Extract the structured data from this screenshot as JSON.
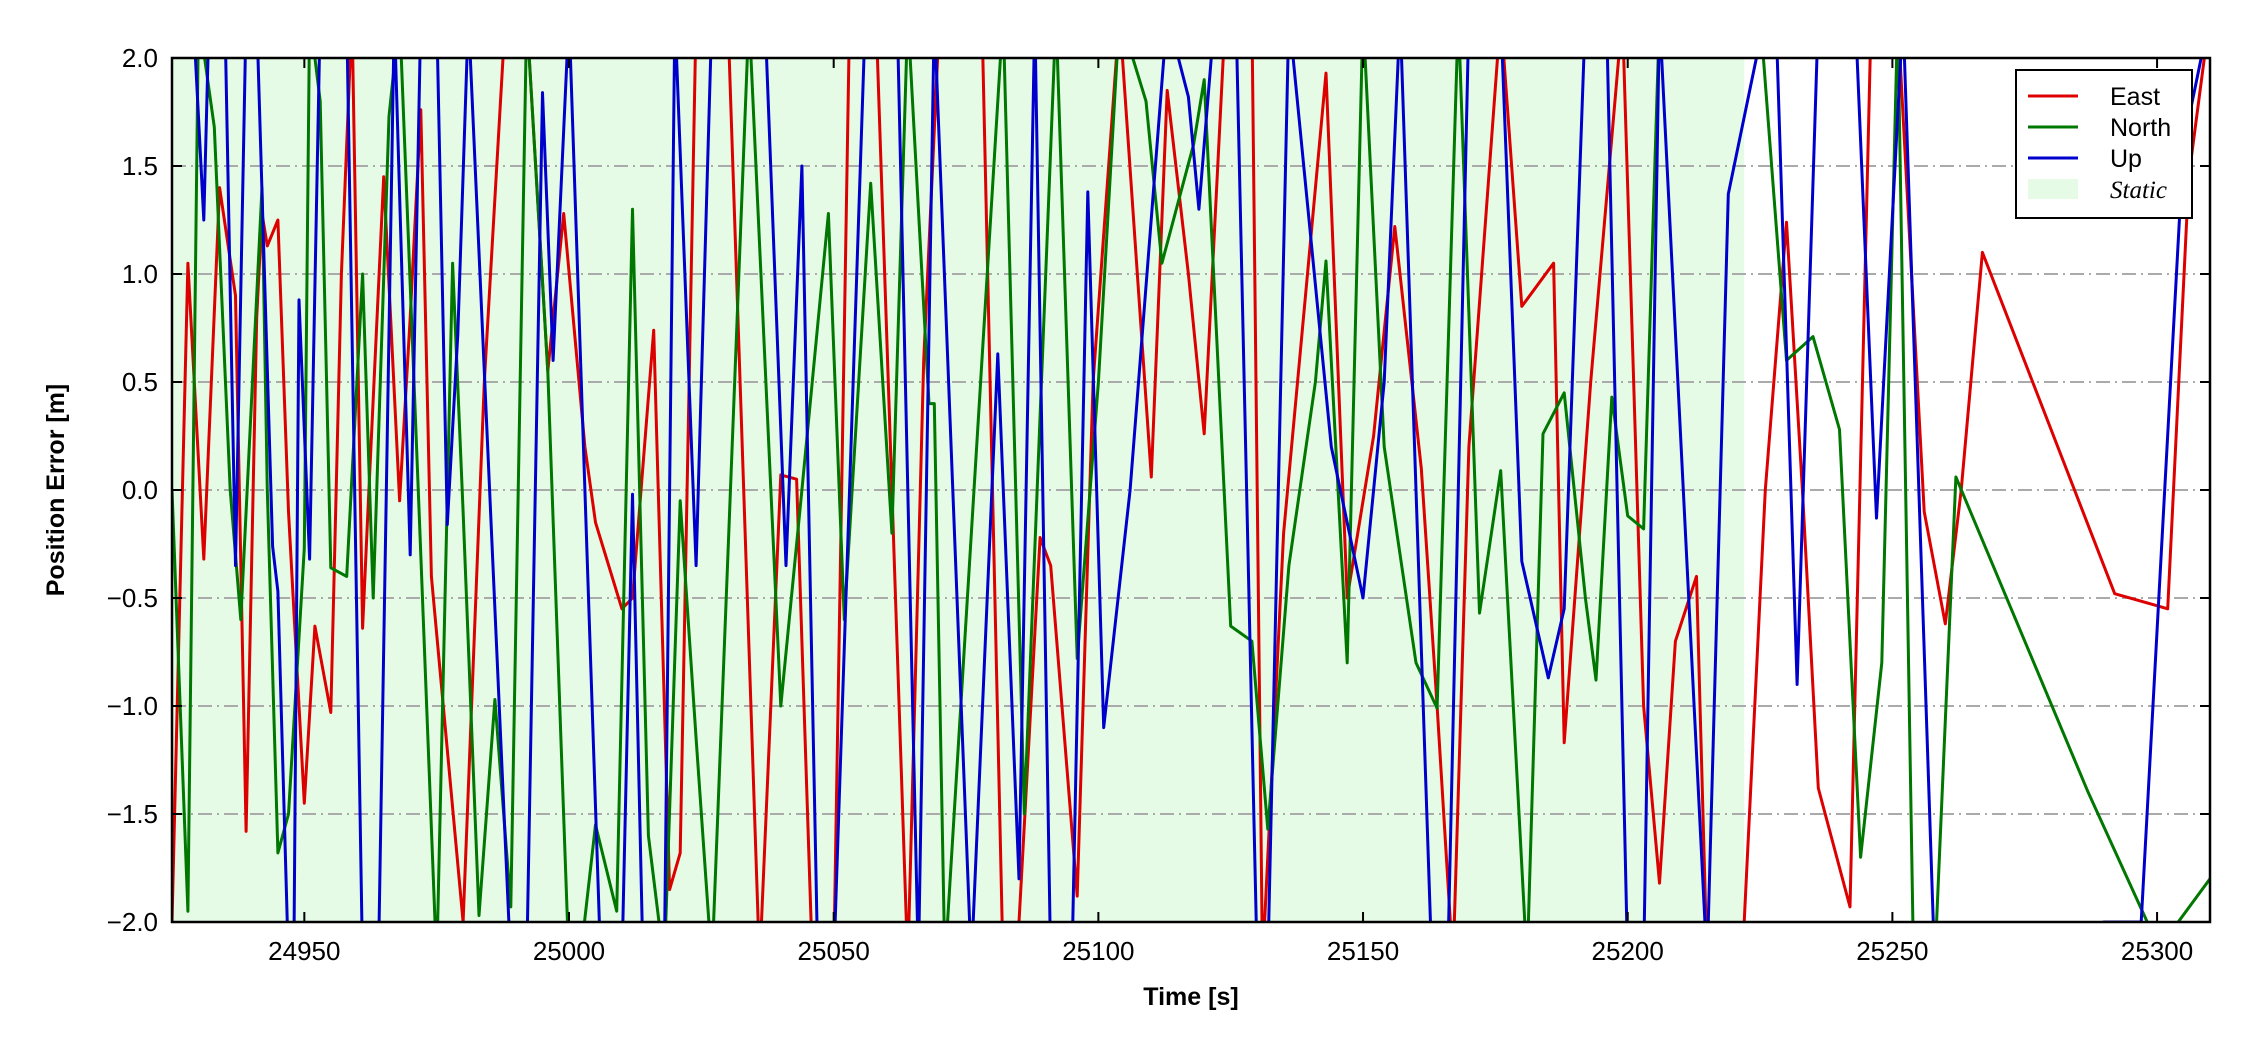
{
  "chart_data": {
    "type": "line",
    "title": "",
    "xlabel": "Time [s]",
    "ylabel": "Position Error [m]",
    "xlim": [
      24925,
      25310
    ],
    "ylim": [
      -2.0,
      2.0
    ],
    "xticks": [
      24950,
      25000,
      25050,
      25100,
      25150,
      25200,
      25250,
      25300
    ],
    "yticks": [
      -2.0,
      -1.5,
      -1.0,
      -0.5,
      0.0,
      0.5,
      1.0,
      1.5,
      2.0
    ],
    "xtick_labels": [
      "24950",
      "25000",
      "25050",
      "25100",
      "25150",
      "25200",
      "25250",
      "25300"
    ],
    "ytick_labels": [
      "−2.0",
      "−1.5",
      "−1.0",
      "−0.5",
      "0.0",
      "0.5",
      "1.0",
      "1.5",
      "2.0"
    ],
    "grid": "horizontal dash-dot",
    "legend_placement": "top-right",
    "static_region": {
      "label": "Static",
      "x_start": 24925,
      "x_end": 25222,
      "color": "#e6fbe6"
    },
    "series": [
      {
        "name": "East",
        "color": "#dd0000",
        "points": [
          [
            24925,
            -2.0
          ],
          [
            24928,
            1.05
          ],
          [
            24931,
            -0.32
          ],
          [
            24934,
            1.4
          ],
          [
            24937,
            0.9
          ],
          [
            24939,
            -1.58
          ],
          [
            24941,
            0.8
          ],
          [
            24942,
            1.28
          ],
          [
            24943,
            1.13
          ],
          [
            24945,
            1.25
          ],
          [
            24947,
            -0.1
          ],
          [
            24950,
            -1.45
          ],
          [
            24952,
            -0.63
          ],
          [
            24955,
            -1.03
          ],
          [
            24957,
            1.0
          ],
          [
            24959,
            2.2
          ],
          [
            24961,
            -0.64
          ],
          [
            24962,
            -0.1
          ],
          [
            24965,
            1.45
          ],
          [
            24968,
            -0.05
          ],
          [
            24970,
            0.8
          ],
          [
            24972,
            1.76
          ],
          [
            24974,
            -0.4
          ],
          [
            24980,
            -2.0
          ],
          [
            24984,
            0.5
          ],
          [
            24988,
            2.2
          ],
          [
            24992,
            2.2
          ],
          [
            24996,
            0.55
          ],
          [
            24999,
            1.28
          ],
          [
            25003,
            0.2
          ],
          [
            25005,
            -0.15
          ],
          [
            25010,
            -0.55
          ],
          [
            25012,
            -0.5
          ],
          [
            25016,
            0.74
          ],
          [
            25019,
            -1.85
          ],
          [
            25021,
            -1.68
          ],
          [
            25024,
            2.2
          ],
          [
            25030,
            2.2
          ],
          [
            25036,
            -2.2
          ],
          [
            25040,
            0.07
          ],
          [
            25043,
            0.05
          ],
          [
            25046,
            -2.2
          ],
          [
            25050,
            -2.2
          ],
          [
            25053,
            2.2
          ],
          [
            25058,
            2.2
          ],
          [
            25064,
            -2.2
          ],
          [
            25067,
            0.6
          ],
          [
            25070,
            2.2
          ],
          [
            25078,
            2.2
          ],
          [
            25082,
            -2.2
          ],
          [
            25085,
            -2.0
          ],
          [
            25089,
            -0.22
          ],
          [
            25091,
            -0.35
          ],
          [
            25096,
            -1.88
          ],
          [
            25099,
            0.5
          ],
          [
            25104,
            2.2
          ],
          [
            25110,
            0.06
          ],
          [
            25113,
            1.85
          ],
          [
            25117,
            1.0
          ],
          [
            25120,
            0.26
          ],
          [
            25124,
            2.2
          ],
          [
            25129,
            2.2
          ],
          [
            25131,
            -2.2
          ],
          [
            25135,
            -0.2
          ],
          [
            25143,
            1.93
          ],
          [
            25147,
            -0.5
          ],
          [
            25152,
            0.25
          ],
          [
            25156,
            1.22
          ],
          [
            25161,
            0.1
          ],
          [
            25164,
            -1.0
          ],
          [
            25167,
            -2.2
          ],
          [
            25170,
            0.2
          ],
          [
            25176,
            2.2
          ],
          [
            25180,
            0.85
          ],
          [
            25186,
            1.05
          ],
          [
            25188,
            -1.17
          ],
          [
            25193,
            0.5
          ],
          [
            25199,
            2.2
          ],
          [
            25201,
            0.6
          ],
          [
            25203,
            -1.0
          ],
          [
            25206,
            -1.82
          ],
          [
            25209,
            -0.7
          ],
          [
            25213,
            -0.4
          ],
          [
            25215,
            -2.2
          ],
          [
            25222,
            -2.0
          ],
          [
            25226,
            0.0
          ],
          [
            25230,
            1.24
          ],
          [
            25233,
            0.0
          ],
          [
            25236,
            -1.38
          ],
          [
            25242,
            -1.93
          ],
          [
            25246,
            2.2
          ],
          [
            25251,
            2.2
          ],
          [
            25256,
            -0.1
          ],
          [
            25260,
            -0.62
          ],
          [
            25263,
            0.0
          ],
          [
            25267,
            1.1
          ],
          [
            25292,
            -0.48
          ],
          [
            25302,
            -0.55
          ],
          [
            25306,
            1.45
          ],
          [
            25310,
            2.2
          ]
        ]
      },
      {
        "name": "North",
        "color": "#007700",
        "points": [
          [
            24925,
            0.0
          ],
          [
            24928,
            -1.95
          ],
          [
            24930,
            2.2
          ],
          [
            24933,
            1.68
          ],
          [
            24936,
            0.0
          ],
          [
            24938,
            -0.6
          ],
          [
            24942,
            1.4
          ],
          [
            24943,
            0.0
          ],
          [
            24945,
            -1.68
          ],
          [
            24947,
            -1.5
          ],
          [
            24950,
            -0.27
          ],
          [
            24951,
            2.2
          ],
          [
            24953,
            1.8
          ],
          [
            24955,
            -0.36
          ],
          [
            24958,
            -0.4
          ],
          [
            24961,
            1.0
          ],
          [
            24963,
            -0.5
          ],
          [
            24966,
            1.73
          ],
          [
            24968,
            2.2
          ],
          [
            24972,
            -0.3
          ],
          [
            24975,
            -2.2
          ],
          [
            24978,
            1.05
          ],
          [
            24980,
            -0.1
          ],
          [
            24983,
            -1.97
          ],
          [
            24986,
            -0.97
          ],
          [
            24989,
            -1.93
          ],
          [
            24992,
            2.2
          ],
          [
            24996,
            0.55
          ],
          [
            25000,
            -2.2
          ],
          [
            25002,
            -2.2
          ],
          [
            25005,
            -1.55
          ],
          [
            25009,
            -1.95
          ],
          [
            25012,
            1.3
          ],
          [
            25015,
            -1.6
          ],
          [
            25018,
            -2.2
          ],
          [
            25021,
            -0.05
          ],
          [
            25024,
            -1.15
          ],
          [
            25027,
            -2.2
          ],
          [
            25034,
            2.2
          ],
          [
            25040,
            -1.0
          ],
          [
            25044,
            0.0
          ],
          [
            25049,
            1.28
          ],
          [
            25052,
            -0.6
          ],
          [
            25057,
            1.42
          ],
          [
            25061,
            -0.2
          ],
          [
            25064,
            2.2
          ],
          [
            25068,
            0.4
          ],
          [
            25069,
            0.4
          ],
          [
            25071,
            -2.2
          ],
          [
            25082,
            2.2
          ],
          [
            25086,
            -1.5
          ],
          [
            25092,
            2.2
          ],
          [
            25096,
            -0.78
          ],
          [
            25100,
            0.5
          ],
          [
            25104,
            2.2
          ],
          [
            25109,
            1.8
          ],
          [
            25112,
            1.05
          ],
          [
            25118,
            1.6
          ],
          [
            25120,
            1.9
          ],
          [
            25125,
            -0.63
          ],
          [
            25129,
            -0.7
          ],
          [
            25132,
            -1.57
          ],
          [
            25136,
            -0.35
          ],
          [
            25141,
            0.5
          ],
          [
            25143,
            1.06
          ],
          [
            25147,
            -0.8
          ],
          [
            25150,
            2.2
          ],
          [
            25154,
            0.2
          ],
          [
            25160,
            -0.8
          ],
          [
            25164,
            -1.01
          ],
          [
            25168,
            2.2
          ],
          [
            25172,
            -0.57
          ],
          [
            25176,
            0.09
          ],
          [
            25181,
            -2.2
          ],
          [
            25184,
            0.26
          ],
          [
            25188,
            0.45
          ],
          [
            25192,
            -0.5
          ],
          [
            25194,
            -0.88
          ],
          [
            25197,
            0.43
          ],
          [
            25200,
            -0.12
          ],
          [
            25203,
            -0.18
          ],
          [
            25206,
            2.2
          ],
          [
            25222,
            2.2
          ],
          [
            25225,
            2.2
          ],
          [
            25230,
            0.6
          ],
          [
            25235,
            0.71
          ],
          [
            25240,
            0.28
          ],
          [
            25244,
            -1.7
          ],
          [
            25248,
            -0.8
          ],
          [
            25251,
            2.2
          ],
          [
            25254,
            -2.2
          ],
          [
            25258,
            -2.2
          ],
          [
            25262,
            0.06
          ],
          [
            25287,
            -1.4
          ],
          [
            25300,
            -2.1
          ],
          [
            25304,
            -2.0
          ],
          [
            25310,
            -1.8
          ]
        ]
      },
      {
        "name": "Up",
        "color": "#0000cc",
        "points": [
          [
            24925,
            2.2
          ],
          [
            24929,
            2.2
          ],
          [
            24931,
            1.25
          ],
          [
            24932,
            2.2
          ],
          [
            24935,
            2.2
          ],
          [
            24937,
            -0.35
          ],
          [
            24939,
            2.2
          ],
          [
            24941,
            2.2
          ],
          [
            24944,
            -0.26
          ],
          [
            24945,
            -0.47
          ],
          [
            24947,
            -2.2
          ],
          [
            24948,
            -2.2
          ],
          [
            24949,
            0.88
          ],
          [
            24951,
            -0.32
          ],
          [
            24953,
            2.2
          ],
          [
            24958,
            2.2
          ],
          [
            24961,
            -2.2
          ],
          [
            24964,
            -2.2
          ],
          [
            24967,
            2.2
          ],
          [
            24970,
            -0.3
          ],
          [
            24972,
            2.2
          ],
          [
            24975,
            2.2
          ],
          [
            24977,
            -0.16
          ],
          [
            24979,
            0.72
          ],
          [
            24981,
            2.2
          ],
          [
            24989,
            -2.2
          ],
          [
            24992,
            -2.2
          ],
          [
            24995,
            1.84
          ],
          [
            24997,
            0.6
          ],
          [
            25000,
            2.2
          ],
          [
            25006,
            -2.2
          ],
          [
            25010,
            -2.2
          ],
          [
            25012,
            -0.02
          ],
          [
            25014,
            -2.2
          ],
          [
            25018,
            -2.2
          ],
          [
            25020,
            2.2
          ],
          [
            25024,
            -0.35
          ],
          [
            25027,
            2.2
          ],
          [
            25037,
            2.2
          ],
          [
            25041,
            -0.35
          ],
          [
            25044,
            1.5
          ],
          [
            25047,
            -2.2
          ],
          [
            25050,
            -2.2
          ],
          [
            25056,
            2.2
          ],
          [
            25062,
            2.2
          ],
          [
            25066,
            -2.2
          ],
          [
            25069,
            2.2
          ],
          [
            25076,
            -2.2
          ],
          [
            25081,
            0.63
          ],
          [
            25085,
            -1.8
          ],
          [
            25088,
            2.2
          ],
          [
            25091,
            -2.2
          ],
          [
            25095,
            -2.2
          ],
          [
            25098,
            1.38
          ],
          [
            25101,
            -1.1
          ],
          [
            25106,
            0.0
          ],
          [
            25113,
            2.2
          ],
          [
            25117,
            1.82
          ],
          [
            25119,
            1.3
          ],
          [
            25122,
            2.2
          ],
          [
            25126,
            2.2
          ],
          [
            25130,
            -2.2
          ],
          [
            25132,
            -2.2
          ],
          [
            25136,
            2.2
          ],
          [
            25144,
            0.2
          ],
          [
            25150,
            -0.5
          ],
          [
            25154,
            0.5
          ],
          [
            25157,
            2.2
          ],
          [
            25163,
            -2.2
          ],
          [
            25166,
            -2.2
          ],
          [
            25170,
            2.2
          ],
          [
            25176,
            2.2
          ],
          [
            25180,
            -0.33
          ],
          [
            25185,
            -0.87
          ],
          [
            25188,
            -0.55
          ],
          [
            25192,
            2.2
          ],
          [
            25196,
            2.2
          ],
          [
            25200,
            -2.2
          ],
          [
            25203,
            -2.2
          ],
          [
            25206,
            2.2
          ],
          [
            25215,
            -2.2
          ],
          [
            25219,
            1.37
          ],
          [
            25226,
            2.2
          ],
          [
            25228,
            2.2
          ],
          [
            25232,
            -0.9
          ],
          [
            25236,
            2.2
          ],
          [
            25243,
            2.2
          ],
          [
            25247,
            -0.13
          ],
          [
            25252,
            2.2
          ],
          [
            25258,
            -2.2
          ],
          [
            25262,
            -2.2
          ],
          [
            25290,
            -2.0
          ],
          [
            25297,
            -2.0
          ],
          [
            25305,
            1.6
          ],
          [
            25310,
            2.2
          ]
        ]
      }
    ]
  }
}
